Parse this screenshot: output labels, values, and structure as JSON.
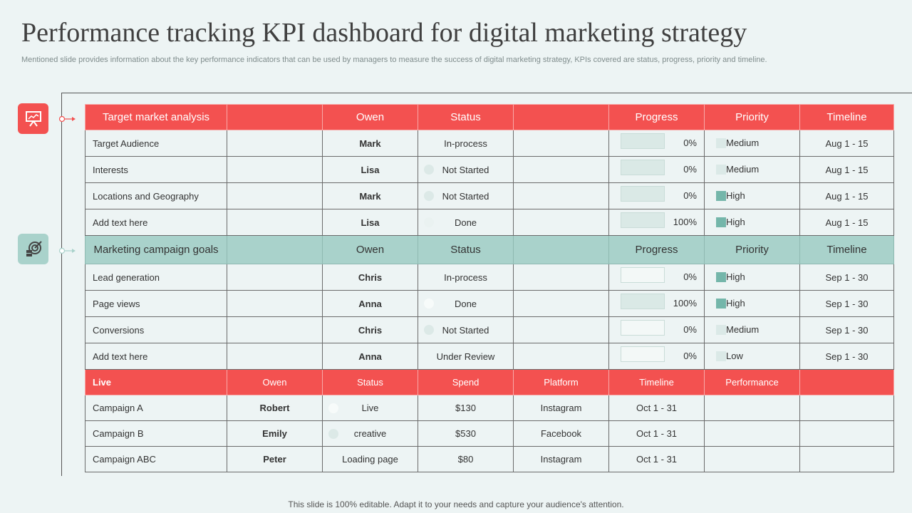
{
  "header": {
    "title": "Performance tracking KPI dashboard for digital marketing strategy",
    "subtitle": "Mentioned slide provides information about the key performance indicators that can be used by managers to measure the success of digital marketing strategy, KPIs covered are status, progress, priority and timeline."
  },
  "section1": {
    "header": {
      "label": "Target market analysis",
      "owner": "Owen",
      "status": "Status",
      "progress": "Progress",
      "priority": "Priority",
      "timeline": "Timeline"
    },
    "rows": [
      {
        "task": "Target  Audience",
        "owner": "Mark",
        "status": "In-process",
        "progress": "0%",
        "progress_value": 0,
        "priority": "Medium",
        "timeline": "Aug 1 - 15"
      },
      {
        "task": "Interests",
        "owner": "Lisa",
        "status": "Not Started",
        "progress": "0%",
        "progress_value": 0,
        "priority": "Medium",
        "timeline": "Aug 1 - 15"
      },
      {
        "task": "Locations and Geography",
        "owner": "Mark",
        "status": "Not Started",
        "progress": "0%",
        "progress_value": 0,
        "priority": "High",
        "timeline": "Aug 1 - 15"
      },
      {
        "task": "Add text here",
        "owner": "Lisa",
        "status": "Done",
        "progress": "100%",
        "progress_value": 100,
        "priority": "High",
        "timeline": "Aug 1 - 15"
      }
    ]
  },
  "section2": {
    "header": {
      "label": "Marketing campaign goals",
      "owner": "Owen",
      "status": "Status",
      "progress": "Progress",
      "priority": "Priority",
      "timeline": "Timeline"
    },
    "rows": [
      {
        "task": "Lead generation",
        "owner": "Chris",
        "status": "In-process",
        "progress": "0%",
        "progress_value": 0,
        "priority": "High",
        "timeline": "Sep 1 - 30"
      },
      {
        "task": "Page views",
        "owner": "Anna",
        "status": "Done",
        "progress": "100%",
        "progress_value": 100,
        "priority": "High",
        "timeline": "Sep 1 - 30"
      },
      {
        "task": "Conversions",
        "owner": "Chris",
        "status": "Not Started",
        "progress": "0%",
        "progress_value": 0,
        "priority": "Medium",
        "timeline": "Sep 1 - 30"
      },
      {
        "task": "Add text here",
        "owner": "Anna",
        "status": "Under Review",
        "progress": "0%",
        "progress_value": 0,
        "priority": "Low",
        "timeline": "Sep 1 - 30"
      }
    ]
  },
  "section3": {
    "header": {
      "label": "Live",
      "owner": "Owen",
      "status": "Status",
      "spend": "Spend",
      "platform": "Platform",
      "timeline": "Timeline",
      "performance": "Performance"
    },
    "rows": [
      {
        "campaign": "Campaign  A",
        "owner": "Robert",
        "status": "Live",
        "spend": "$130",
        "platform": "Instagram",
        "timeline": "Oct 1 - 31"
      },
      {
        "campaign": "Campaign  B",
        "owner": "Emily",
        "status": "creative",
        "spend": "$530",
        "platform": "Facebook",
        "timeline": "Oct 1 - 31"
      },
      {
        "campaign": "Campaign ABC",
        "owner": "Peter",
        "status": "Loading page",
        "spend": "$80",
        "platform": "Instagram",
        "timeline": "Oct 1 - 31"
      }
    ]
  },
  "footer": {
    "text": "This slide is 100% editable. Adapt it to your needs and capture your audience's attention."
  },
  "icons": {
    "section1": "presentation-chart-icon",
    "section2": "target-goal-icon"
  },
  "colors": {
    "red": "#f35150",
    "teal": "#a9d2cb",
    "bg": "#edf4f4",
    "high": "#74b6aa",
    "medium": "#dbe9e7"
  }
}
